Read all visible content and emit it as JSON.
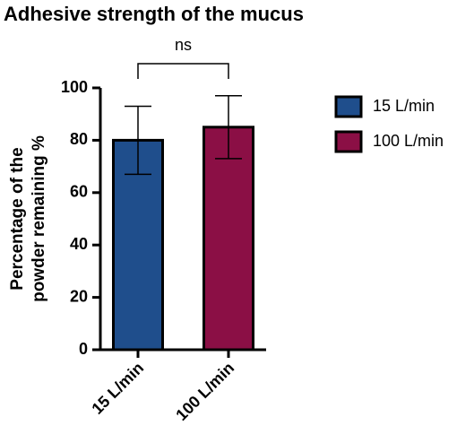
{
  "chart_data": {
    "type": "bar",
    "title": "Adhesive strength of the mucus",
    "ylabel": [
      "Percentage of the",
      "powder remaining %"
    ],
    "categories": [
      "15 L/min",
      "100 L/min"
    ],
    "series": [
      {
        "name": "15 L/min",
        "color": "#1f4e8c",
        "values": [
          80,
          null
        ],
        "errors": [
          13,
          null
        ]
      },
      {
        "name": "100 L/min",
        "color": "#8b0f45",
        "values": [
          null,
          85
        ],
        "errors": [
          null,
          12
        ]
      }
    ],
    "annotation": "ns",
    "ylim": [
      0,
      100
    ],
    "yticks": [
      0,
      20,
      40,
      60,
      80,
      100
    ]
  }
}
